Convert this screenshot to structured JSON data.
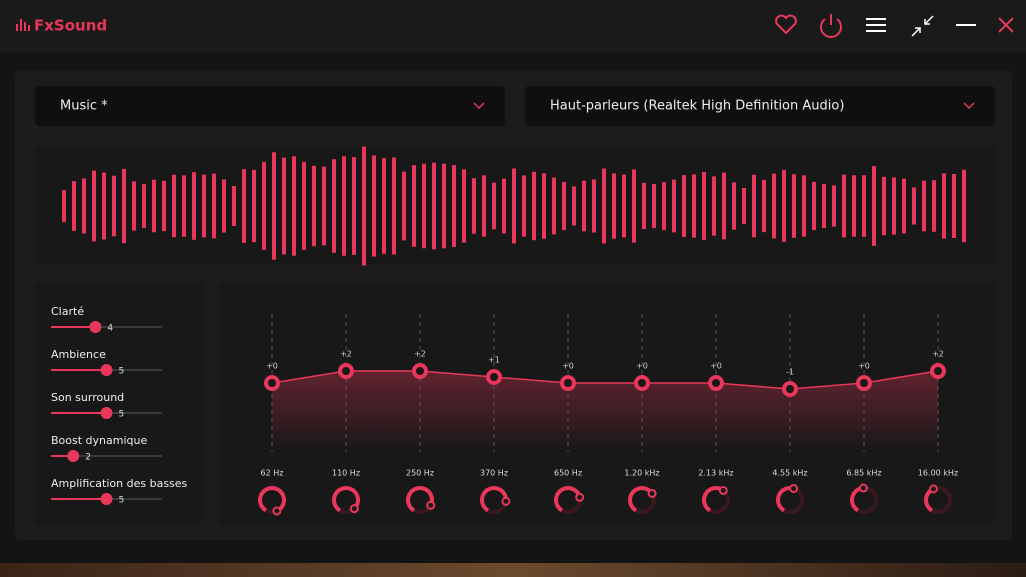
{
  "app": {
    "name": "FxSound"
  },
  "preset": "Music *",
  "output": "Haut-parleurs (Realtek High Definition Audio)",
  "effects": [
    {
      "label": "Clarté",
      "value": 4
    },
    {
      "label": "Ambience",
      "value": 5
    },
    {
      "label": "Son surround",
      "value": 5
    },
    {
      "label": "Boost dynamique",
      "value": 2
    },
    {
      "label": "Amplification des basses",
      "value": 5
    }
  ],
  "equalizer": {
    "bands": [
      {
        "frequency": "62 Hz",
        "gain": 0,
        "gain_label": "+0"
      },
      {
        "frequency": "110 Hz",
        "gain": 2,
        "gain_label": "+2"
      },
      {
        "frequency": "250 Hz",
        "gain": 2,
        "gain_label": "+2"
      },
      {
        "frequency": "370 Hz",
        "gain": 1,
        "gain_label": "+1"
      },
      {
        "frequency": "650 Hz",
        "gain": 0,
        "gain_label": "+0"
      },
      {
        "frequency": "1.20 kHz",
        "gain": 0,
        "gain_label": "+0"
      },
      {
        "frequency": "2.13 kHz",
        "gain": 0,
        "gain_label": "+0"
      },
      {
        "frequency": "4.55 kHz",
        "gain": -1,
        "gain_label": "-1"
      },
      {
        "frequency": "6.85 kHz",
        "gain": 0,
        "gain_label": "+0"
      },
      {
        "frequency": "16.00 kHz",
        "gain": 2,
        "gain_label": "+2"
      }
    ]
  }
}
